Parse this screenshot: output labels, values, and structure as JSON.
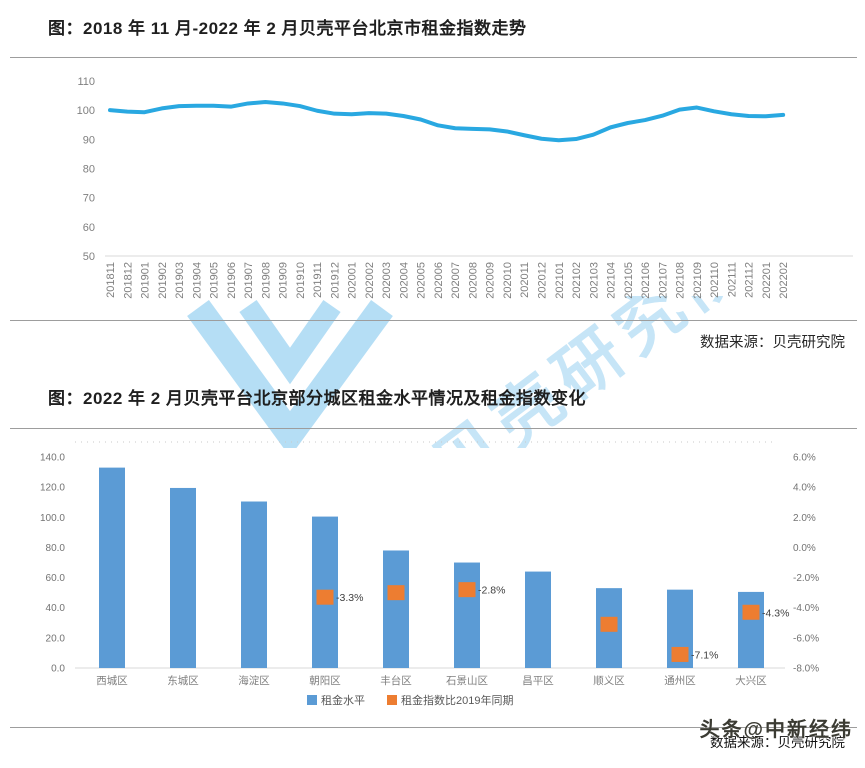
{
  "colors": {
    "line_blue": "#29A8E1",
    "bar_blue": "#5B9BD5",
    "marker_orange": "#ED7D31",
    "axis_gray": "#7f7f7f",
    "axis_line_gray": "#d9d9d9",
    "rule_gray": "#9d9d9d",
    "watermark_blue": "#A9D9F4"
  },
  "source_note": "数据来源：贝壳研究院",
  "footer": {
    "handle": "头条@中新经纬",
    "source_note": "数据来源：贝壳研究院"
  },
  "watermark": {
    "text": "贝壳研究院",
    "logo": "beike-v-logo"
  },
  "chart_data": [
    {
      "type": "line",
      "title": "图：2018 年 11 月-2022 年 2 月贝壳平台北京市租金指数走势",
      "x": [
        "201811",
        "201812",
        "201901",
        "201902",
        "201903",
        "201904",
        "201905",
        "201906",
        "201907",
        "201908",
        "201909",
        "201910",
        "201911",
        "201912",
        "202001",
        "202002",
        "202003",
        "202004",
        "202005",
        "202006",
        "202007",
        "202008",
        "202009",
        "202010",
        "202011",
        "202012",
        "202101",
        "202102",
        "202103",
        "202104",
        "202105",
        "202106",
        "202107",
        "202108",
        "202109",
        "202110",
        "202111",
        "202112",
        "202201",
        "202202"
      ],
      "values": [
        100.0,
        99.5,
        99.3,
        100.6,
        101.4,
        101.5,
        101.5,
        101.2,
        102.3,
        102.8,
        102.3,
        101.4,
        99.8,
        98.8,
        98.6,
        99.0,
        98.8,
        98.0,
        96.8,
        94.8,
        93.8,
        93.6,
        93.4,
        92.7,
        91.4,
        90.2,
        89.7,
        90.1,
        91.6,
        94.1,
        95.6,
        96.6,
        98.1,
        100.2,
        100.9,
        99.6,
        98.6,
        98.0,
        97.9,
        98.4
      ],
      "ylim": [
        50,
        110
      ],
      "yticks": [
        110,
        100,
        90,
        80,
        70,
        60,
        50
      ],
      "grid": false,
      "legend": false,
      "line_color": "#29A8E1"
    },
    {
      "type": "bar",
      "title": "图：2022 年 2 月贝壳平台北京部分城区租金水平情况及租金指数变化",
      "categories": [
        "西城区",
        "东城区",
        "海淀区",
        "朝阳区",
        "丰台区",
        "石景山区",
        "昌平区",
        "顺义区",
        "通州区",
        "大兴区"
      ],
      "series": [
        {
          "name": "租金水平",
          "chart": "bar",
          "axis": "left",
          "color": "#5B9BD5",
          "values": [
            133.0,
            119.5,
            110.5,
            100.5,
            78.0,
            70.0,
            64.0,
            53.0,
            52.0,
            50.5
          ]
        },
        {
          "name": "租金指数比2019年同期",
          "chart": "point",
          "axis": "right",
          "color": "#ED7D31",
          "values": [
            null,
            null,
            null,
            -3.3,
            -3.0,
            -2.8,
            null,
            -5.1,
            -7.1,
            -4.3
          ],
          "point_labels": [
            null,
            null,
            null,
            "-3.3%",
            null,
            "-2.8%",
            null,
            null,
            "-7.1%",
            "-4.3%"
          ]
        }
      ],
      "left_axis": {
        "lim": [
          0,
          150
        ],
        "ticks": [
          "0.0",
          "20.0",
          "40.0",
          "60.0",
          "80.0",
          "100.0",
          "120.0",
          "140.0"
        ]
      },
      "right_axis": {
        "lim": [
          -8,
          7
        ],
        "ticks": [
          "6.0%",
          "4.0%",
          "2.0%",
          "0.0%",
          "-2.0%",
          "-4.0%",
          "-6.0%",
          "-8.0%"
        ]
      },
      "legend_position": "bottom"
    }
  ]
}
